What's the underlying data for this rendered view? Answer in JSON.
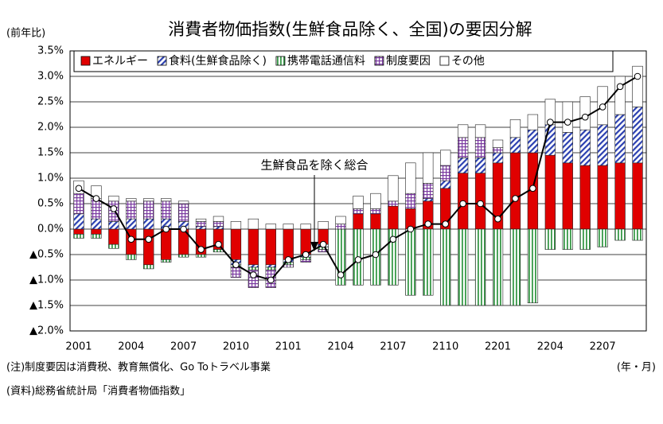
{
  "chart_data": {
    "type": "bar",
    "title": "消費者物価指数(生鮮食品除く、全国)の要因分解",
    "y_axis_label": "(前年比)",
    "x_axis_label": "(年・月)",
    "notes": [
      "(注)制度要因は消費税、教育無償化、Go Toトラベル事業",
      "(資料)総務省統計局「消費者物価指数」"
    ],
    "stacked": true,
    "categories": [
      "2001",
      null,
      null,
      "2004",
      null,
      null,
      "2007",
      null,
      null,
      "2010",
      null,
      null,
      "2101",
      null,
      null,
      "2104",
      null,
      null,
      "2107",
      null,
      null,
      "2110",
      null,
      null,
      "2201",
      null,
      null,
      "2204",
      null,
      null,
      "2207",
      null,
      null
    ],
    "series": [
      {
        "name": "エネルギー",
        "color": "#e00000",
        "values": [
          -0.1,
          -0.1,
          -0.3,
          -0.5,
          -0.7,
          -0.6,
          -0.5,
          -0.5,
          -0.4,
          -0.6,
          -0.7,
          -0.7,
          -0.6,
          -0.5,
          -0.3,
          0.0,
          0.3,
          0.3,
          0.45,
          0.4,
          0.55,
          0.8,
          1.1,
          1.1,
          1.3,
          1.5,
          1.5,
          1.45,
          1.3,
          1.25,
          1.25,
          1.3,
          1.3
        ]
      },
      {
        "name": "食料(生鮮食品除く)",
        "color": "#2a3fb0",
        "values": [
          0.3,
          0.2,
          0.15,
          0.2,
          0.2,
          0.2,
          0.15,
          0.05,
          0.05,
          -0.1,
          -0.05,
          -0.05,
          -0.05,
          -0.05,
          -0.05,
          0.0,
          0.0,
          0.0,
          0.0,
          0.0,
          0.05,
          0.15,
          0.3,
          0.3,
          0.2,
          0.3,
          0.45,
          0.6,
          0.6,
          0.7,
          0.8,
          0.95,
          1.1
        ]
      },
      {
        "name": "携帯電話通信料",
        "color": "#3a9a4a",
        "values": [
          -0.08,
          -0.08,
          -0.08,
          -0.1,
          -0.08,
          -0.05,
          -0.05,
          -0.05,
          -0.05,
          -0.05,
          -0.05,
          -0.05,
          -0.05,
          -0.05,
          -0.05,
          -1.1,
          -1.1,
          -1.1,
          -1.1,
          -1.3,
          -1.3,
          -1.5,
          -1.5,
          -1.5,
          -1.5,
          -1.5,
          -1.45,
          -0.4,
          -0.4,
          -0.4,
          -0.35,
          -0.22,
          -0.22
        ]
      },
      {
        "name": "制度要因",
        "color": "#7a3aa0",
        "values": [
          0.4,
          0.4,
          0.4,
          0.35,
          0.35,
          0.35,
          0.35,
          0.1,
          0.1,
          -0.2,
          -0.35,
          -0.35,
          -0.05,
          -0.05,
          -0.05,
          0.1,
          0.1,
          0.1,
          0.1,
          0.3,
          0.3,
          0.3,
          0.4,
          0.4,
          0.1,
          0.0,
          0.0,
          0.0,
          0.0,
          0.0,
          0.0,
          0.0,
          0.0
        ]
      },
      {
        "name": "その他",
        "color": "#ffffff",
        "values": [
          0.25,
          0.25,
          0.1,
          0.05,
          0.05,
          0.05,
          0.05,
          0.05,
          0.1,
          0.15,
          0.2,
          0.1,
          0.1,
          0.1,
          0.15,
          0.15,
          0.25,
          0.3,
          0.5,
          0.6,
          0.6,
          0.3,
          0.25,
          0.25,
          0.15,
          0.35,
          0.3,
          0.5,
          0.6,
          0.65,
          0.75,
          0.75,
          0.8
        ]
      }
    ],
    "line": {
      "name": "生鮮食品を除く総合",
      "color": "#000000",
      "values": [
        0.8,
        0.6,
        0.4,
        -0.2,
        -0.2,
        0.0,
        0.0,
        -0.4,
        -0.3,
        -0.7,
        -0.9,
        -1.0,
        -0.6,
        -0.5,
        -0.3,
        -0.9,
        -0.6,
        -0.5,
        -0.2,
        0.0,
        0.1,
        0.1,
        0.5,
        0.5,
        0.2,
        0.6,
        0.8,
        2.1,
        2.1,
        2.2,
        2.4,
        2.8,
        3.0
      ]
    },
    "ylim": [
      -2.0,
      3.5
    ],
    "yticks": [
      {
        "value": -2.0,
        "label": "▲2.0%"
      },
      {
        "value": -1.5,
        "label": "▲1.5%"
      },
      {
        "value": -1.0,
        "label": "▲1.0%"
      },
      {
        "value": -0.5,
        "label": "▲0.5%"
      },
      {
        "value": 0.0,
        "label": "0.0%"
      },
      {
        "value": 0.5,
        "label": "0.5%"
      },
      {
        "value": 1.0,
        "label": "1.0%"
      },
      {
        "value": 1.5,
        "label": "1.5%"
      },
      {
        "value": 2.0,
        "label": "2.0%"
      },
      {
        "value": 2.5,
        "label": "2.5%"
      },
      {
        "value": 3.0,
        "label": "3.0%"
      },
      {
        "value": 3.5,
        "label": "3.5%"
      }
    ],
    "grid": true,
    "legend": "top"
  }
}
